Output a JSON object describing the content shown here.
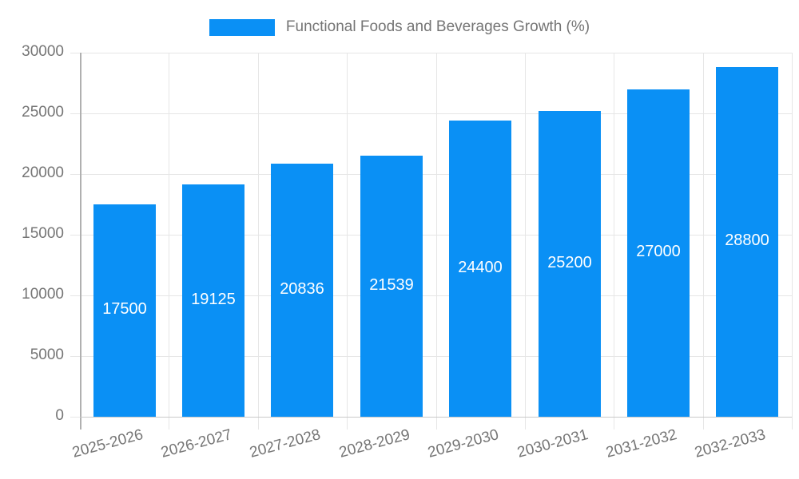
{
  "legend": {
    "label": "Functional Foods and Beverages Growth (%)"
  },
  "colors": {
    "bar": "#0a90f5",
    "text": "#757575",
    "grid": "#e6e6e6",
    "axis_y": "#b0b0b0",
    "axis_x": "#c9c9c9",
    "value_label": "#ffffff",
    "background": "#ffffff"
  },
  "chart_data": {
    "type": "bar",
    "title": "Functional Foods and Beverages Growth (%)",
    "categories": [
      "2025-2026",
      "2026-2027",
      "2027-2028",
      "2028-2029",
      "2029-2030",
      "2030-2031",
      "2031-2032",
      "2032-2033"
    ],
    "values": [
      17500,
      19125,
      20836,
      21539,
      24400,
      25200,
      27000,
      28800
    ],
    "value_label_position": "inside-center",
    "xlabel": "",
    "ylabel": "",
    "ylim": [
      0,
      30000
    ],
    "yticks": [
      0,
      5000,
      10000,
      15000,
      20000,
      25000,
      30000
    ],
    "grid": true,
    "legend_position": "top",
    "x_label_rotation_deg": -15
  }
}
